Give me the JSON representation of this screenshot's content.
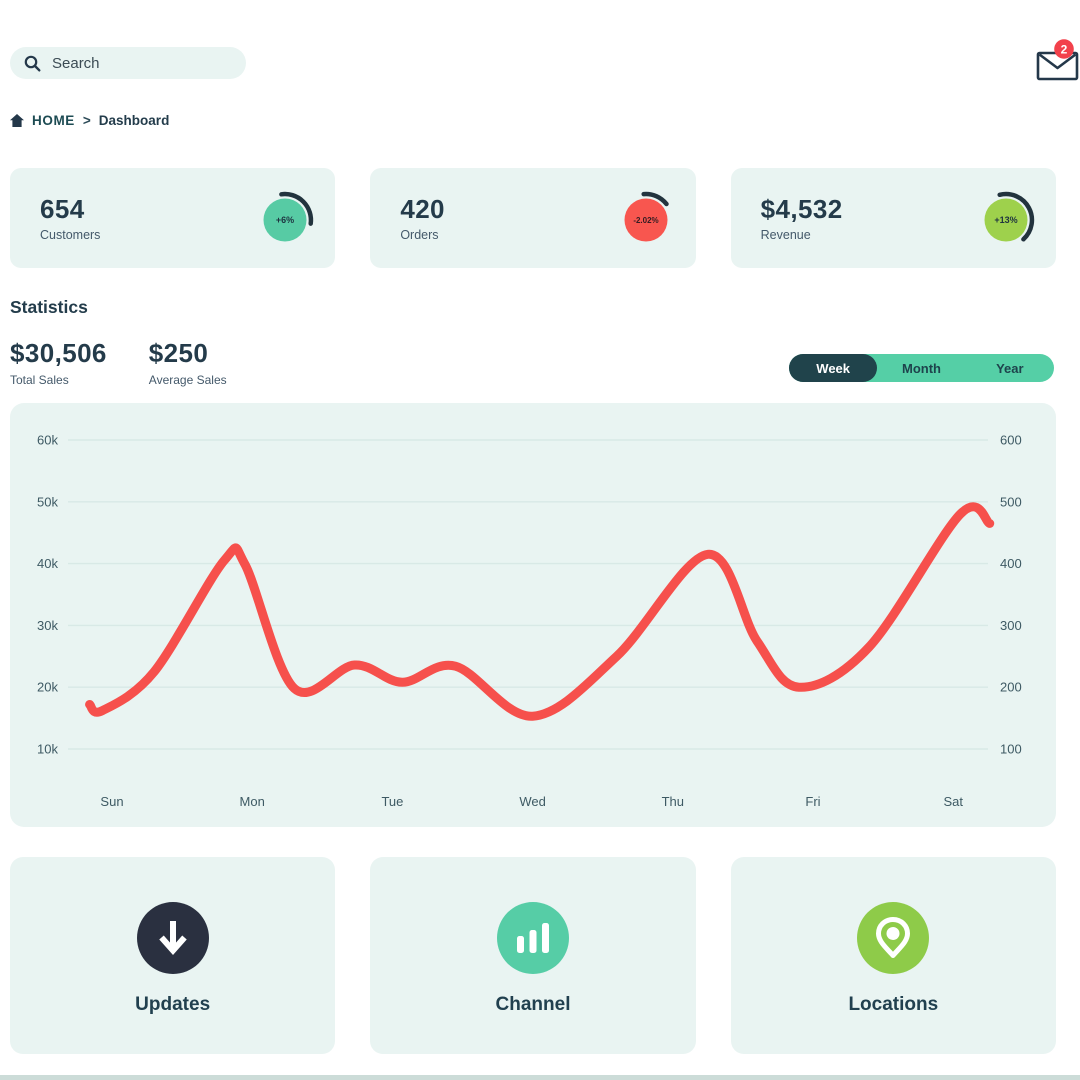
{
  "header": {
    "search_placeholder": "Search",
    "mail_badge": "2"
  },
  "breadcrumb": {
    "root": "HOME",
    "separator": ">",
    "current": "Dashboard"
  },
  "stat_cards": [
    {
      "value": "654",
      "label": "Customers",
      "delta": "+6%",
      "color": "#57cba4",
      "arc": {
        "start": -8,
        "end": 98
      }
    },
    {
      "value": "420",
      "label": "Orders",
      "delta": "-2.02%",
      "color": "#f8564f",
      "arc": {
        "start": -5,
        "end": 52
      }
    },
    {
      "value": "$4,532",
      "label": "Revenue",
      "delta": "+13%",
      "color": "#9ed14c",
      "arc": {
        "start": -14,
        "end": 138
      }
    }
  ],
  "statistics": {
    "title": "Statistics",
    "totals": [
      {
        "value": "$30,506",
        "label": "Total Sales"
      },
      {
        "value": "$250",
        "label": "Average Sales"
      }
    ],
    "range_tabs": [
      {
        "label": "Week",
        "active": true
      },
      {
        "label": "Month",
        "active": false
      },
      {
        "label": "Year",
        "active": false
      }
    ]
  },
  "chart_data": {
    "type": "line",
    "x_labels": [
      "Sun",
      "Mon",
      "Tue",
      "Wed",
      "Thu",
      "Fri",
      "Sat"
    ],
    "y_axis_left": {
      "labels": [
        "60k",
        "50k",
        "40k",
        "30k",
        "20k",
        "10k"
      ],
      "min": 10000,
      "max": 60000
    },
    "y_axis_right": {
      "labels": [
        "600",
        "500",
        "400",
        "300",
        "200",
        "100"
      ],
      "min": 100,
      "max": 600
    },
    "grid": true,
    "legend": false,
    "line_color": "#f6504c",
    "series": [
      {
        "name": "Sales",
        "points_day_value_k": [
          [
            -0.16,
            17.2
          ],
          [
            -0.07,
            16.2
          ],
          [
            0.3,
            22.5
          ],
          [
            0.8,
            40.5
          ],
          [
            0.95,
            39.8
          ],
          [
            1.3,
            19.8
          ],
          [
            1.73,
            23.6
          ],
          [
            2.07,
            20.8
          ],
          [
            2.45,
            23.4
          ],
          [
            3.0,
            15.3
          ],
          [
            3.6,
            25.0
          ],
          [
            4.25,
            41.5
          ],
          [
            4.6,
            27.5
          ],
          [
            4.9,
            20.0
          ],
          [
            5.4,
            26.5
          ],
          [
            6.05,
            48.0
          ],
          [
            6.26,
            46.5
          ]
        ]
      }
    ]
  },
  "action_cards": [
    {
      "label": "Updates",
      "icon": "download-arrow-icon",
      "color": "#2a3040"
    },
    {
      "label": "Channel",
      "icon": "bar-chart-icon",
      "color": "#56cda6"
    },
    {
      "label": "Locations",
      "icon": "location-pin-icon",
      "color": "#8ecb49"
    }
  ]
}
